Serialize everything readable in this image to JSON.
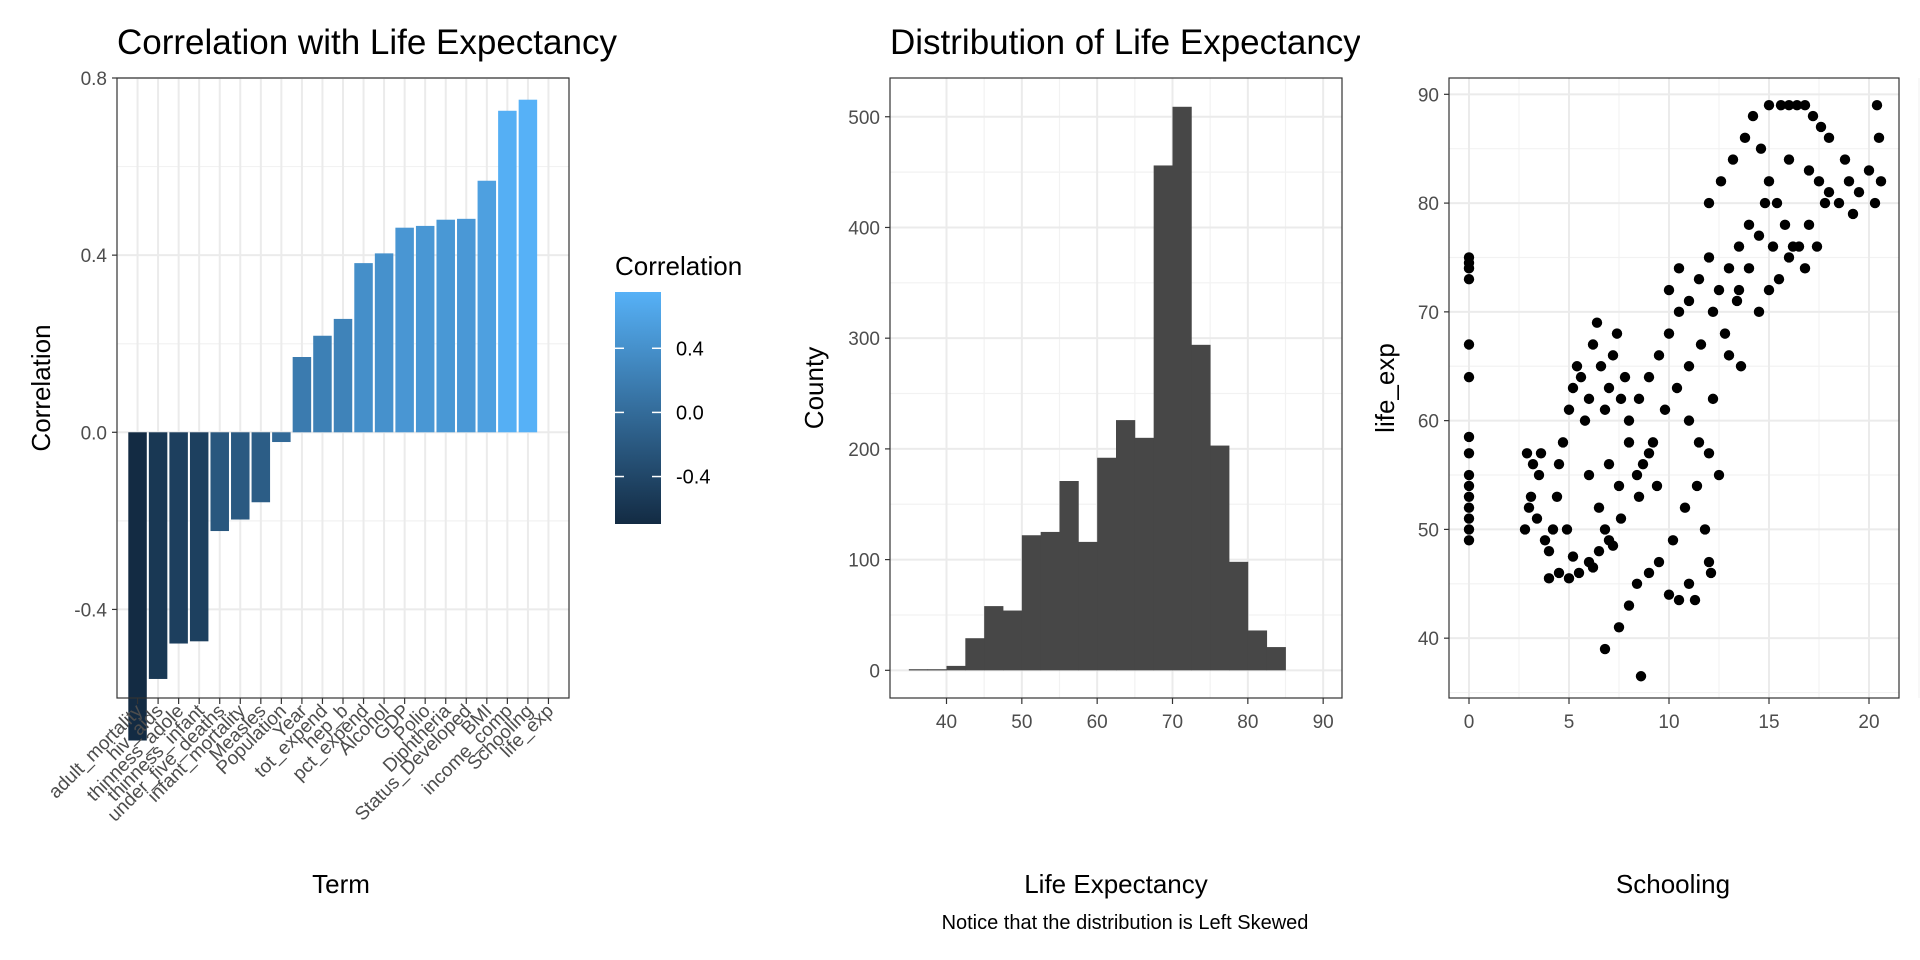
{
  "chart_data": [
    {
      "id": "corr",
      "type": "bar",
      "title": "Correlation with Life Expectancy",
      "xlabel": "Term",
      "ylabel": "Correlation",
      "ylim": [
        -0.6,
        0.8
      ],
      "yticks": [
        -0.4,
        0.0,
        0.4,
        0.8
      ],
      "ytick_labels": [
        "-0.4",
        "0.0",
        "0.4",
        "0.8"
      ],
      "grid": true,
      "categories": [
        "adult_mortality",
        "hiv_aids",
        "thinness_adole",
        "thinness_infant",
        "under_five_deaths",
        "infant_mortality",
        "Measles",
        "Population",
        "Year",
        "tot_expend",
        "hep_b",
        "pct_expend",
        "Alcohol",
        "GDP",
        "Polio",
        "Diphtheria",
        "Status_Developed",
        "BMI",
        "income_comp",
        "Schooling",
        "life_exp"
      ],
      "values": [
        -0.696,
        -0.557,
        -0.477,
        -0.472,
        -0.223,
        -0.197,
        -0.158,
        -0.022,
        0.17,
        0.218,
        0.256,
        0.382,
        0.404,
        0.462,
        0.466,
        0.48,
        0.482,
        0.568,
        0.726,
        0.751,
        null
      ],
      "legend": {
        "title": "Correlation",
        "placement": "right",
        "labels": [
          "0.4",
          "0.0",
          "-0.4"
        ],
        "values": [
          0.4,
          0.0,
          -0.4
        ],
        "color_low": "#132b43",
        "color_high": "#56b1f7"
      }
    },
    {
      "id": "hist",
      "type": "histogram",
      "title": "Distribution of Life Expectancy",
      "xlabel": "Life Expectancy",
      "ylabel": "County",
      "caption": "Notice that the distribution is Left Skewed",
      "xlim": [
        32.5,
        92.5
      ],
      "ylim": [
        -25,
        535
      ],
      "xticks": [
        40,
        50,
        60,
        70,
        80,
        90
      ],
      "yticks": [
        0,
        100,
        200,
        300,
        400,
        500
      ],
      "bin_width": 2.5,
      "bin_start": 35,
      "counts": [
        1,
        1,
        4,
        29,
        58,
        54,
        122,
        125,
        171,
        116,
        192,
        226,
        210,
        456,
        509,
        294,
        203,
        98,
        36,
        21
      ],
      "fill": "#474747",
      "grid": true
    },
    {
      "id": "scatter",
      "type": "scatter",
      "xlabel": "Schooling",
      "ylabel": "life_exp",
      "xlim": [
        -1,
        21.5
      ],
      "ylim": [
        34.5,
        91.5
      ],
      "xticks": [
        0,
        5,
        10,
        15,
        20
      ],
      "yticks": [
        40,
        50,
        60,
        70,
        80,
        90
      ],
      "point_color": "#000000",
      "grid": true,
      "points": [
        [
          0,
          49
        ],
        [
          0,
          50
        ],
        [
          0,
          51
        ],
        [
          0,
          52
        ],
        [
          0,
          53
        ],
        [
          0,
          54
        ],
        [
          0,
          55
        ],
        [
          0,
          57
        ],
        [
          0,
          58.5
        ],
        [
          0,
          64
        ],
        [
          0,
          67
        ],
        [
          0,
          73
        ],
        [
          0,
          74
        ],
        [
          0,
          74.5
        ],
        [
          0,
          75
        ],
        [
          2.8,
          50
        ],
        [
          2.9,
          57
        ],
        [
          3,
          52
        ],
        [
          3.1,
          53
        ],
        [
          3.2,
          56
        ],
        [
          3.4,
          51
        ],
        [
          3.5,
          55
        ],
        [
          3.6,
          57
        ],
        [
          3.8,
          49
        ],
        [
          4,
          48
        ],
        [
          4.2,
          50
        ],
        [
          4.4,
          53
        ],
        [
          4.5,
          56
        ],
        [
          4.7,
          58
        ],
        [
          4.9,
          50
        ],
        [
          4,
          45.5
        ],
        [
          4.5,
          46
        ],
        [
          5,
          45.5
        ],
        [
          5.5,
          46
        ],
        [
          6,
          47
        ],
        [
          6.5,
          48
        ],
        [
          7,
          49
        ],
        [
          5.2,
          47.5
        ],
        [
          6.2,
          46.5
        ],
        [
          7.2,
          48.5
        ],
        [
          5,
          61
        ],
        [
          5.2,
          63
        ],
        [
          5.4,
          65
        ],
        [
          5.6,
          64
        ],
        [
          5.8,
          60
        ],
        [
          6,
          62
        ],
        [
          6.2,
          67
        ],
        [
          6.4,
          69
        ],
        [
          6.6,
          65
        ],
        [
          6.8,
          61
        ],
        [
          7,
          63
        ],
        [
          7.2,
          66
        ],
        [
          7.4,
          68
        ],
        [
          7.6,
          62
        ],
        [
          7.8,
          64
        ],
        [
          6,
          55
        ],
        [
          6.5,
          52
        ],
        [
          7,
          56
        ],
        [
          7.5,
          54
        ],
        [
          8,
          58
        ],
        [
          8.5,
          53
        ],
        [
          9,
          57
        ],
        [
          6.8,
          50
        ],
        [
          7.6,
          51
        ],
        [
          8.4,
          55
        ],
        [
          6.8,
          39
        ],
        [
          7.5,
          41
        ],
        [
          8,
          43
        ],
        [
          8.6,
          36.5
        ],
        [
          8.4,
          45
        ],
        [
          9,
          46
        ],
        [
          9.5,
          47
        ],
        [
          10,
          44
        ],
        [
          10.5,
          43.5
        ],
        [
          11,
          45
        ],
        [
          11.3,
          43.5
        ],
        [
          10.2,
          49
        ],
        [
          10.8,
          52
        ],
        [
          8,
          60
        ],
        [
          8.5,
          62
        ],
        [
          9,
          64
        ],
        [
          9.5,
          66
        ],
        [
          10,
          68
        ],
        [
          10.5,
          70
        ],
        [
          9.2,
          58
        ],
        [
          9.8,
          61
        ],
        [
          10.4,
          63
        ],
        [
          11,
          65
        ],
        [
          11.6,
          67
        ],
        [
          8.7,
          56
        ],
        [
          9.4,
          54
        ],
        [
          10,
          72
        ],
        [
          10.5,
          74
        ],
        [
          11,
          71
        ],
        [
          11.5,
          73
        ],
        [
          12,
          75
        ],
        [
          12.5,
          72
        ],
        [
          13,
          74
        ],
        [
          13.5,
          76
        ],
        [
          14,
          78
        ],
        [
          14.5,
          77
        ],
        [
          12.2,
          70
        ],
        [
          12.8,
          68
        ],
        [
          13.4,
          71
        ],
        [
          11,
          60
        ],
        [
          11.5,
          58
        ],
        [
          12,
          57
        ],
        [
          12.5,
          55
        ],
        [
          12.2,
          62
        ],
        [
          11.8,
          50
        ],
        [
          12,
          47
        ],
        [
          12.1,
          46
        ],
        [
          11.4,
          54
        ],
        [
          12,
          80
        ],
        [
          12.6,
          82
        ],
        [
          13.2,
          84
        ],
        [
          13.8,
          86
        ],
        [
          14.2,
          88
        ],
        [
          14.6,
          85
        ],
        [
          15,
          82
        ],
        [
          15.4,
          80
        ],
        [
          15.8,
          78
        ],
        [
          16.2,
          76
        ],
        [
          13,
          66
        ],
        [
          13.6,
          65
        ],
        [
          15,
          89
        ],
        [
          15.6,
          89
        ],
        [
          16,
          89
        ],
        [
          16.4,
          89
        ],
        [
          16.8,
          89
        ],
        [
          17.2,
          88
        ],
        [
          17.6,
          87
        ],
        [
          18,
          86
        ],
        [
          16,
          84
        ],
        [
          17,
          83
        ],
        [
          17.5,
          82
        ],
        [
          18,
          81
        ],
        [
          18.5,
          80
        ],
        [
          19,
          82
        ],
        [
          19.5,
          81
        ],
        [
          20,
          83
        ],
        [
          20.3,
          80
        ],
        [
          20.4,
          89
        ],
        [
          20.5,
          86
        ],
        [
          20.6,
          82
        ],
        [
          19.2,
          79
        ],
        [
          18.8,
          84
        ],
        [
          17.8,
          80
        ],
        [
          14,
          74
        ],
        [
          15,
          72
        ],
        [
          16,
          75
        ],
        [
          17,
          78
        ],
        [
          14.5,
          70
        ],
        [
          15.5,
          73
        ],
        [
          16.5,
          76
        ],
        [
          13.5,
          72
        ],
        [
          15.2,
          76
        ],
        [
          16.8,
          74
        ],
        [
          17.4,
          76
        ],
        [
          14.8,
          80
        ]
      ]
    }
  ]
}
